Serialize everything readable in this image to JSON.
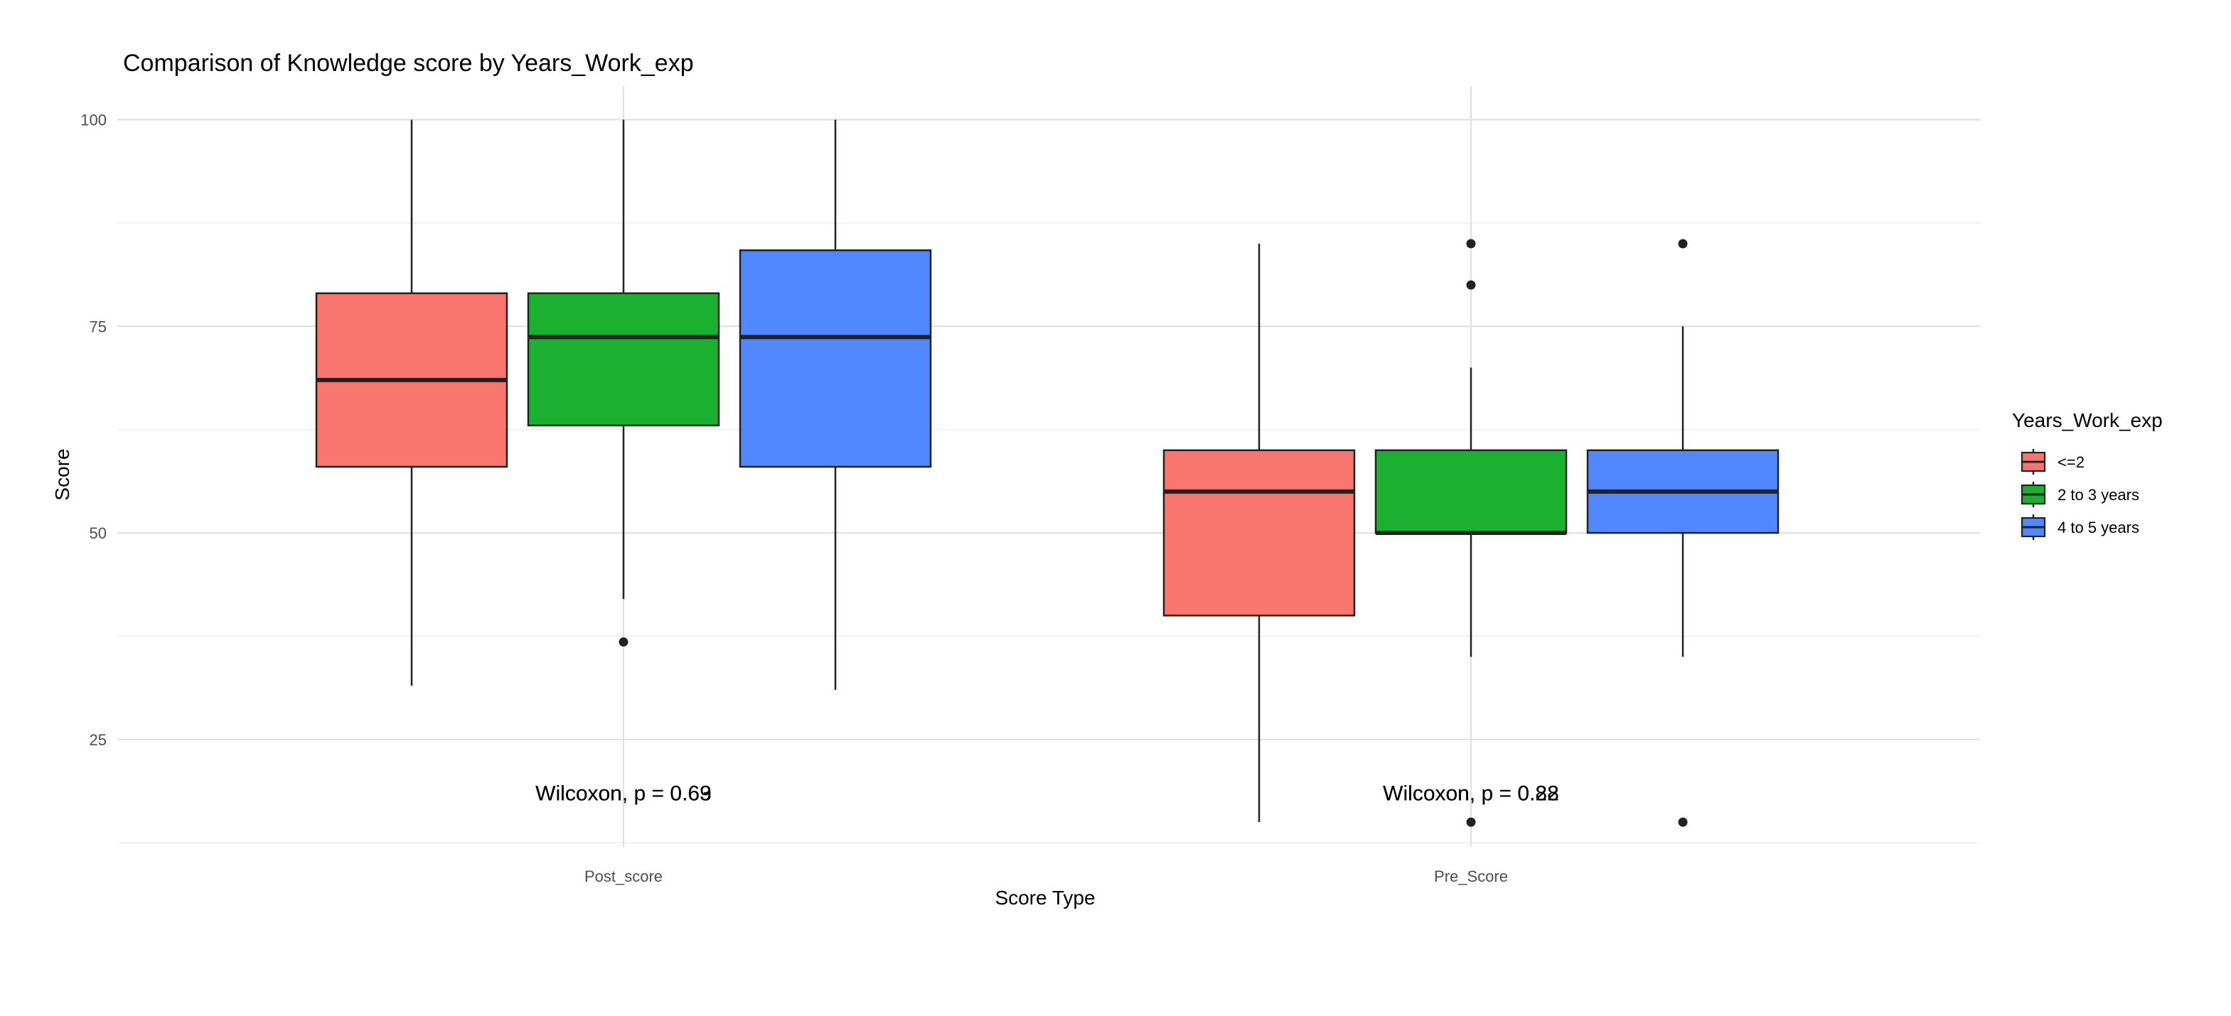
{
  "chart_data": {
    "type": "box",
    "title": "Comparison of Knowledge score  by Years_Work_exp",
    "xlabel": "Score Type",
    "ylabel": "Score",
    "ylim": [
      12,
      104
    ],
    "yticks": [
      25,
      50,
      75,
      100
    ],
    "categories": [
      "Post_score",
      "Pre_Score"
    ],
    "grid": true,
    "legend": {
      "title": "Years_Work_exp",
      "position": "right"
    },
    "series": [
      {
        "name": "<=2",
        "color": "#F8766D",
        "boxes": [
          {
            "category": "Post_score",
            "min": 31.5,
            "q1": 58,
            "median": 68.5,
            "q3": 79,
            "max": 100,
            "outliers": []
          },
          {
            "category": "Pre_Score",
            "min": 15,
            "q1": 40,
            "median": 55,
            "q3": 60,
            "max": 85,
            "outliers": []
          }
        ]
      },
      {
        "name": "2 to 3 years",
        "color": "#1BB02F",
        "boxes": [
          {
            "category": "Post_score",
            "min": 42,
            "q1": 63,
            "median": 73.7,
            "q3": 79,
            "max": 100,
            "outliers": [
              36.8
            ]
          },
          {
            "category": "Pre_Score",
            "min": 35,
            "q1": 50,
            "median": 50,
            "q3": 60,
            "max": 70,
            "outliers": [
              85,
              80,
              15
            ]
          }
        ]
      },
      {
        "name": "4 to 5 years",
        "color": "#5288FF",
        "boxes": [
          {
            "category": "Post_score",
            "min": 31,
            "q1": 58,
            "median": 73.7,
            "q3": 84.2,
            "max": 100,
            "outliers": []
          },
          {
            "category": "Pre_Score",
            "min": 35,
            "q1": 50,
            "median": 55,
            "q3": 60,
            "max": 75,
            "outliers": [
              85,
              15
            ]
          }
        ]
      }
    ],
    "annotations": [
      {
        "category": "Post_score",
        "y": 18.5,
        "text": "Wilcoxon, p = 0.69"
      },
      {
        "category": "Post_score",
        "y": 18.5,
        "text": "Wilcoxon, p = 0.63"
      },
      {
        "category": "Pre_Score",
        "y": 18.5,
        "text": "Wilcoxon, p = 0.82"
      },
      {
        "category": "Pre_Score",
        "y": 18.5,
        "text": "Wilcoxon, p = 0.28"
      }
    ]
  }
}
